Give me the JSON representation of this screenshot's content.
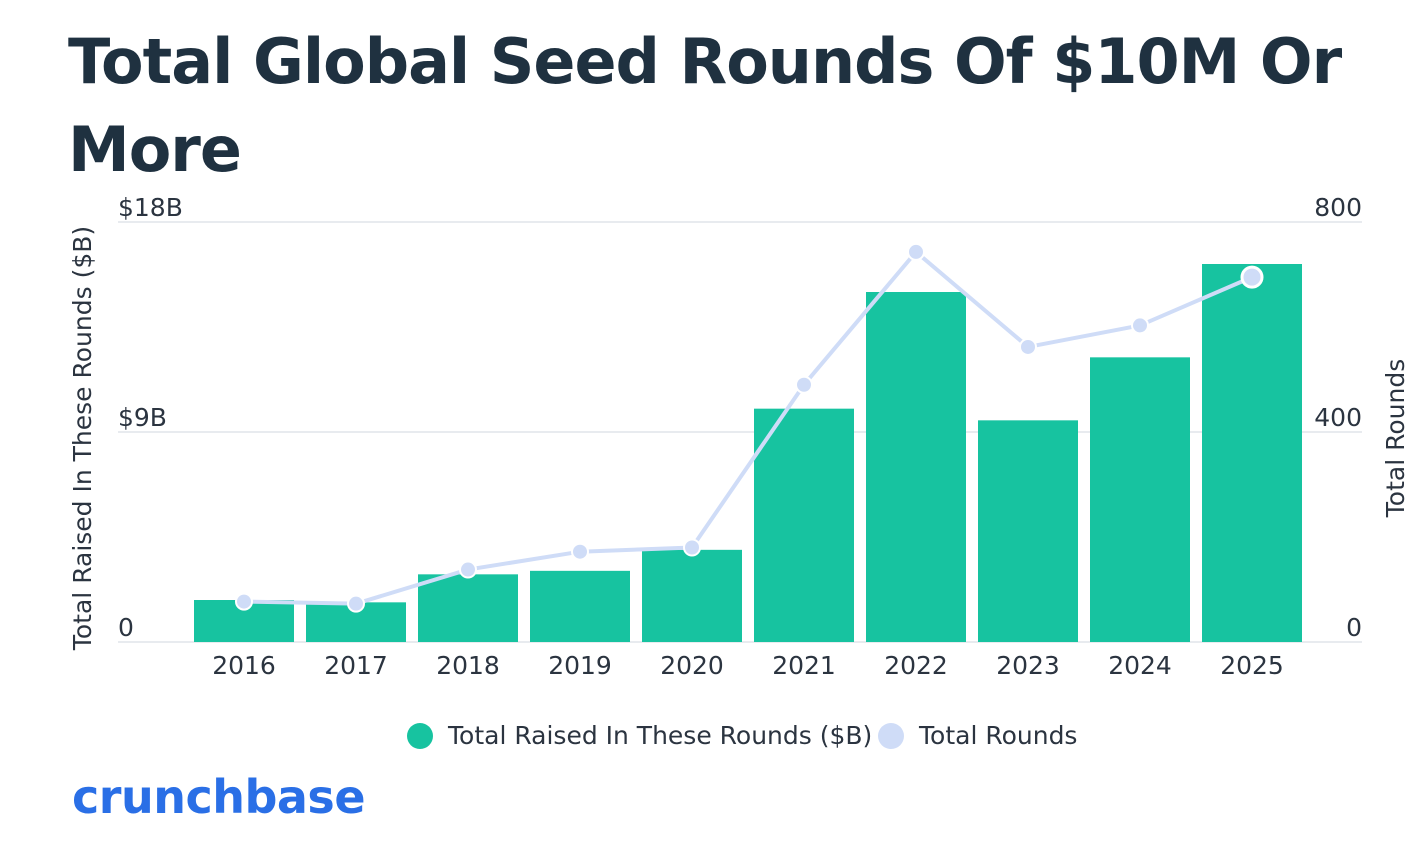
{
  "colors": {
    "bar": "#17c3a0",
    "line": "#cfdcf7",
    "text": "#2b3440",
    "title": "#1f3140",
    "grid": "#e8ebef",
    "brand": "#2a6fe6"
  },
  "chart_data": {
    "type": "bar",
    "title": "Total Global Seed Rounds Of $10M Or More",
    "categories": [
      "2016",
      "2017",
      "2018",
      "2019",
      "2020",
      "2021",
      "2022",
      "2023",
      "2024",
      "2025"
    ],
    "series": [
      {
        "name": "Total Raised In These Rounds ($B)",
        "type": "bar",
        "axis": "left",
        "values": [
          1.8,
          1.7,
          2.9,
          3.05,
          3.95,
          10.0,
          15.0,
          9.5,
          12.2,
          16.2
        ]
      },
      {
        "name": "Total Rounds",
        "type": "line",
        "axis": "right",
        "values": [
          77,
          73,
          138,
          172,
          180,
          490,
          743,
          562,
          603,
          695
        ]
      }
    ],
    "ylabel": "Total Raised In These Rounds ($B)",
    "ylabel_right": "Total Rounds",
    "ylim": [
      0,
      18
    ],
    "ylim_right": [
      0,
      800
    ],
    "yticks": [
      {
        "value": 0,
        "label": "0"
      },
      {
        "value": 9,
        "label": "$9B"
      },
      {
        "value": 18,
        "label": "$18B"
      }
    ],
    "yticks_right": [
      {
        "value": 0,
        "label": "0"
      },
      {
        "value": 400,
        "label": "400"
      },
      {
        "value": 800,
        "label": "800"
      }
    ],
    "grid": true,
    "legend_position": "bottom-center",
    "highlighted_point": "2025"
  },
  "brand": {
    "logo": "crunchbase"
  }
}
